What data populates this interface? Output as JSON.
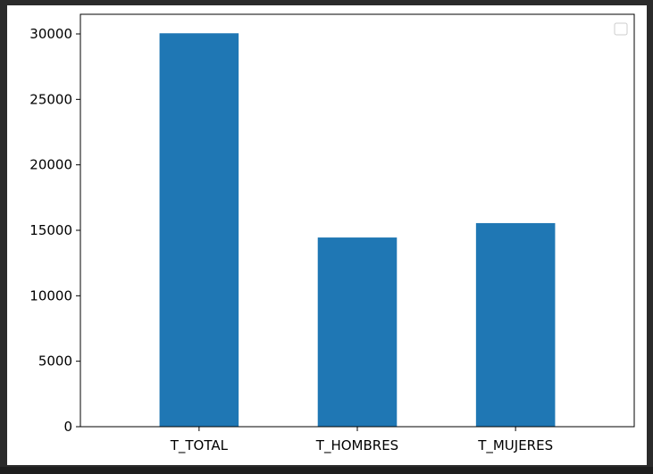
{
  "chart_data": {
    "type": "bar",
    "categories": [
      "T_TOTAL",
      "T_HOMBRES",
      "T_MUJERES"
    ],
    "values": [
      30050,
      14450,
      15550
    ],
    "title": "",
    "xlabel": "",
    "ylabel": "",
    "ylim": [
      0,
      31500
    ],
    "yticks": [
      0,
      5000,
      10000,
      15000,
      20000,
      25000,
      30000
    ],
    "bar_color": "#1f77b4",
    "grid": false,
    "legend": {
      "placement": "top-right",
      "entries": []
    }
  }
}
